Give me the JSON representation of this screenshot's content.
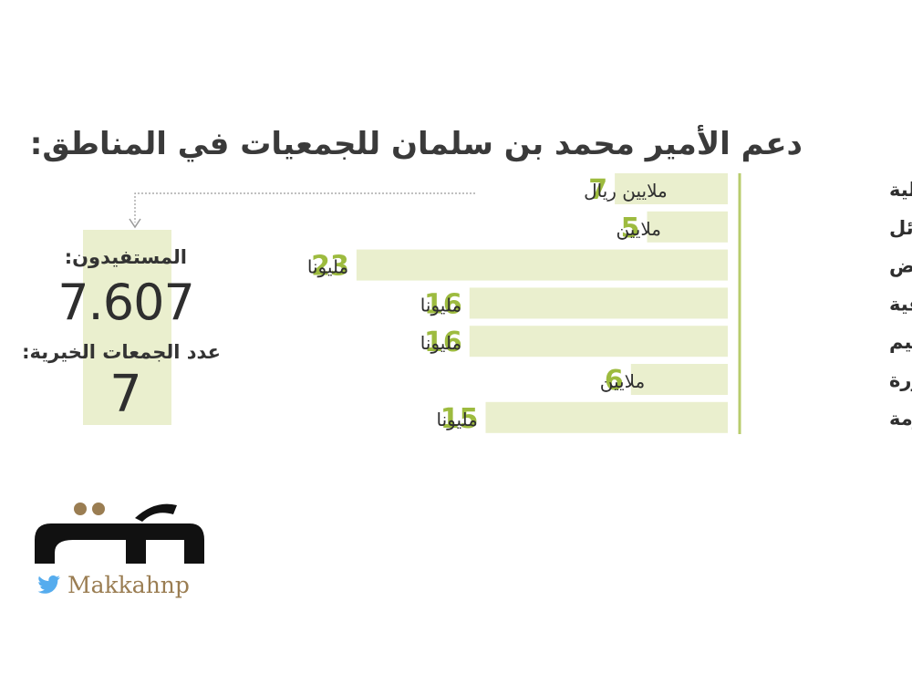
{
  "title": "دعم الأمير محمد بن سلمان للجمعيات في المناطق:",
  "chart_data": {
    "type": "bar",
    "orientation": "horizontal",
    "categories": [
      "الشمالية",
      "حائل",
      "الرياض",
      "الشرقية",
      "القصيم",
      "المدينة المنورة",
      "مكة المكرمة"
    ],
    "values": [
      7,
      5,
      23,
      16,
      16,
      6,
      15
    ],
    "value_labels": [
      "7",
      "5",
      "23",
      "16",
      "16",
      "6",
      "15"
    ],
    "unit_labels": [
      "ملايين ريال",
      "ملايين",
      "مليونا",
      "مليونا",
      "مليونا",
      "ملايين",
      "مليونا"
    ],
    "title": "دعم الأمير محمد بن سلمان للجمعيات في المناطق:",
    "bar_color": "#eaefce",
    "number_color": "#9dbb3f",
    "axis_color": "#b8cc6e"
  },
  "summary": {
    "beneficiaries_label": "المستفيدون:",
    "beneficiaries_value": "7.607",
    "charities_label": "عدد الجمعات الخيرية:",
    "charities_value": "7"
  },
  "brand": {
    "logo_icon": "makkah-newspaper-logo",
    "logo_text": "مكة",
    "social_icon": "twitter-icon",
    "handle": "Makkahnp",
    "accent_color": "#9a7d52"
  }
}
